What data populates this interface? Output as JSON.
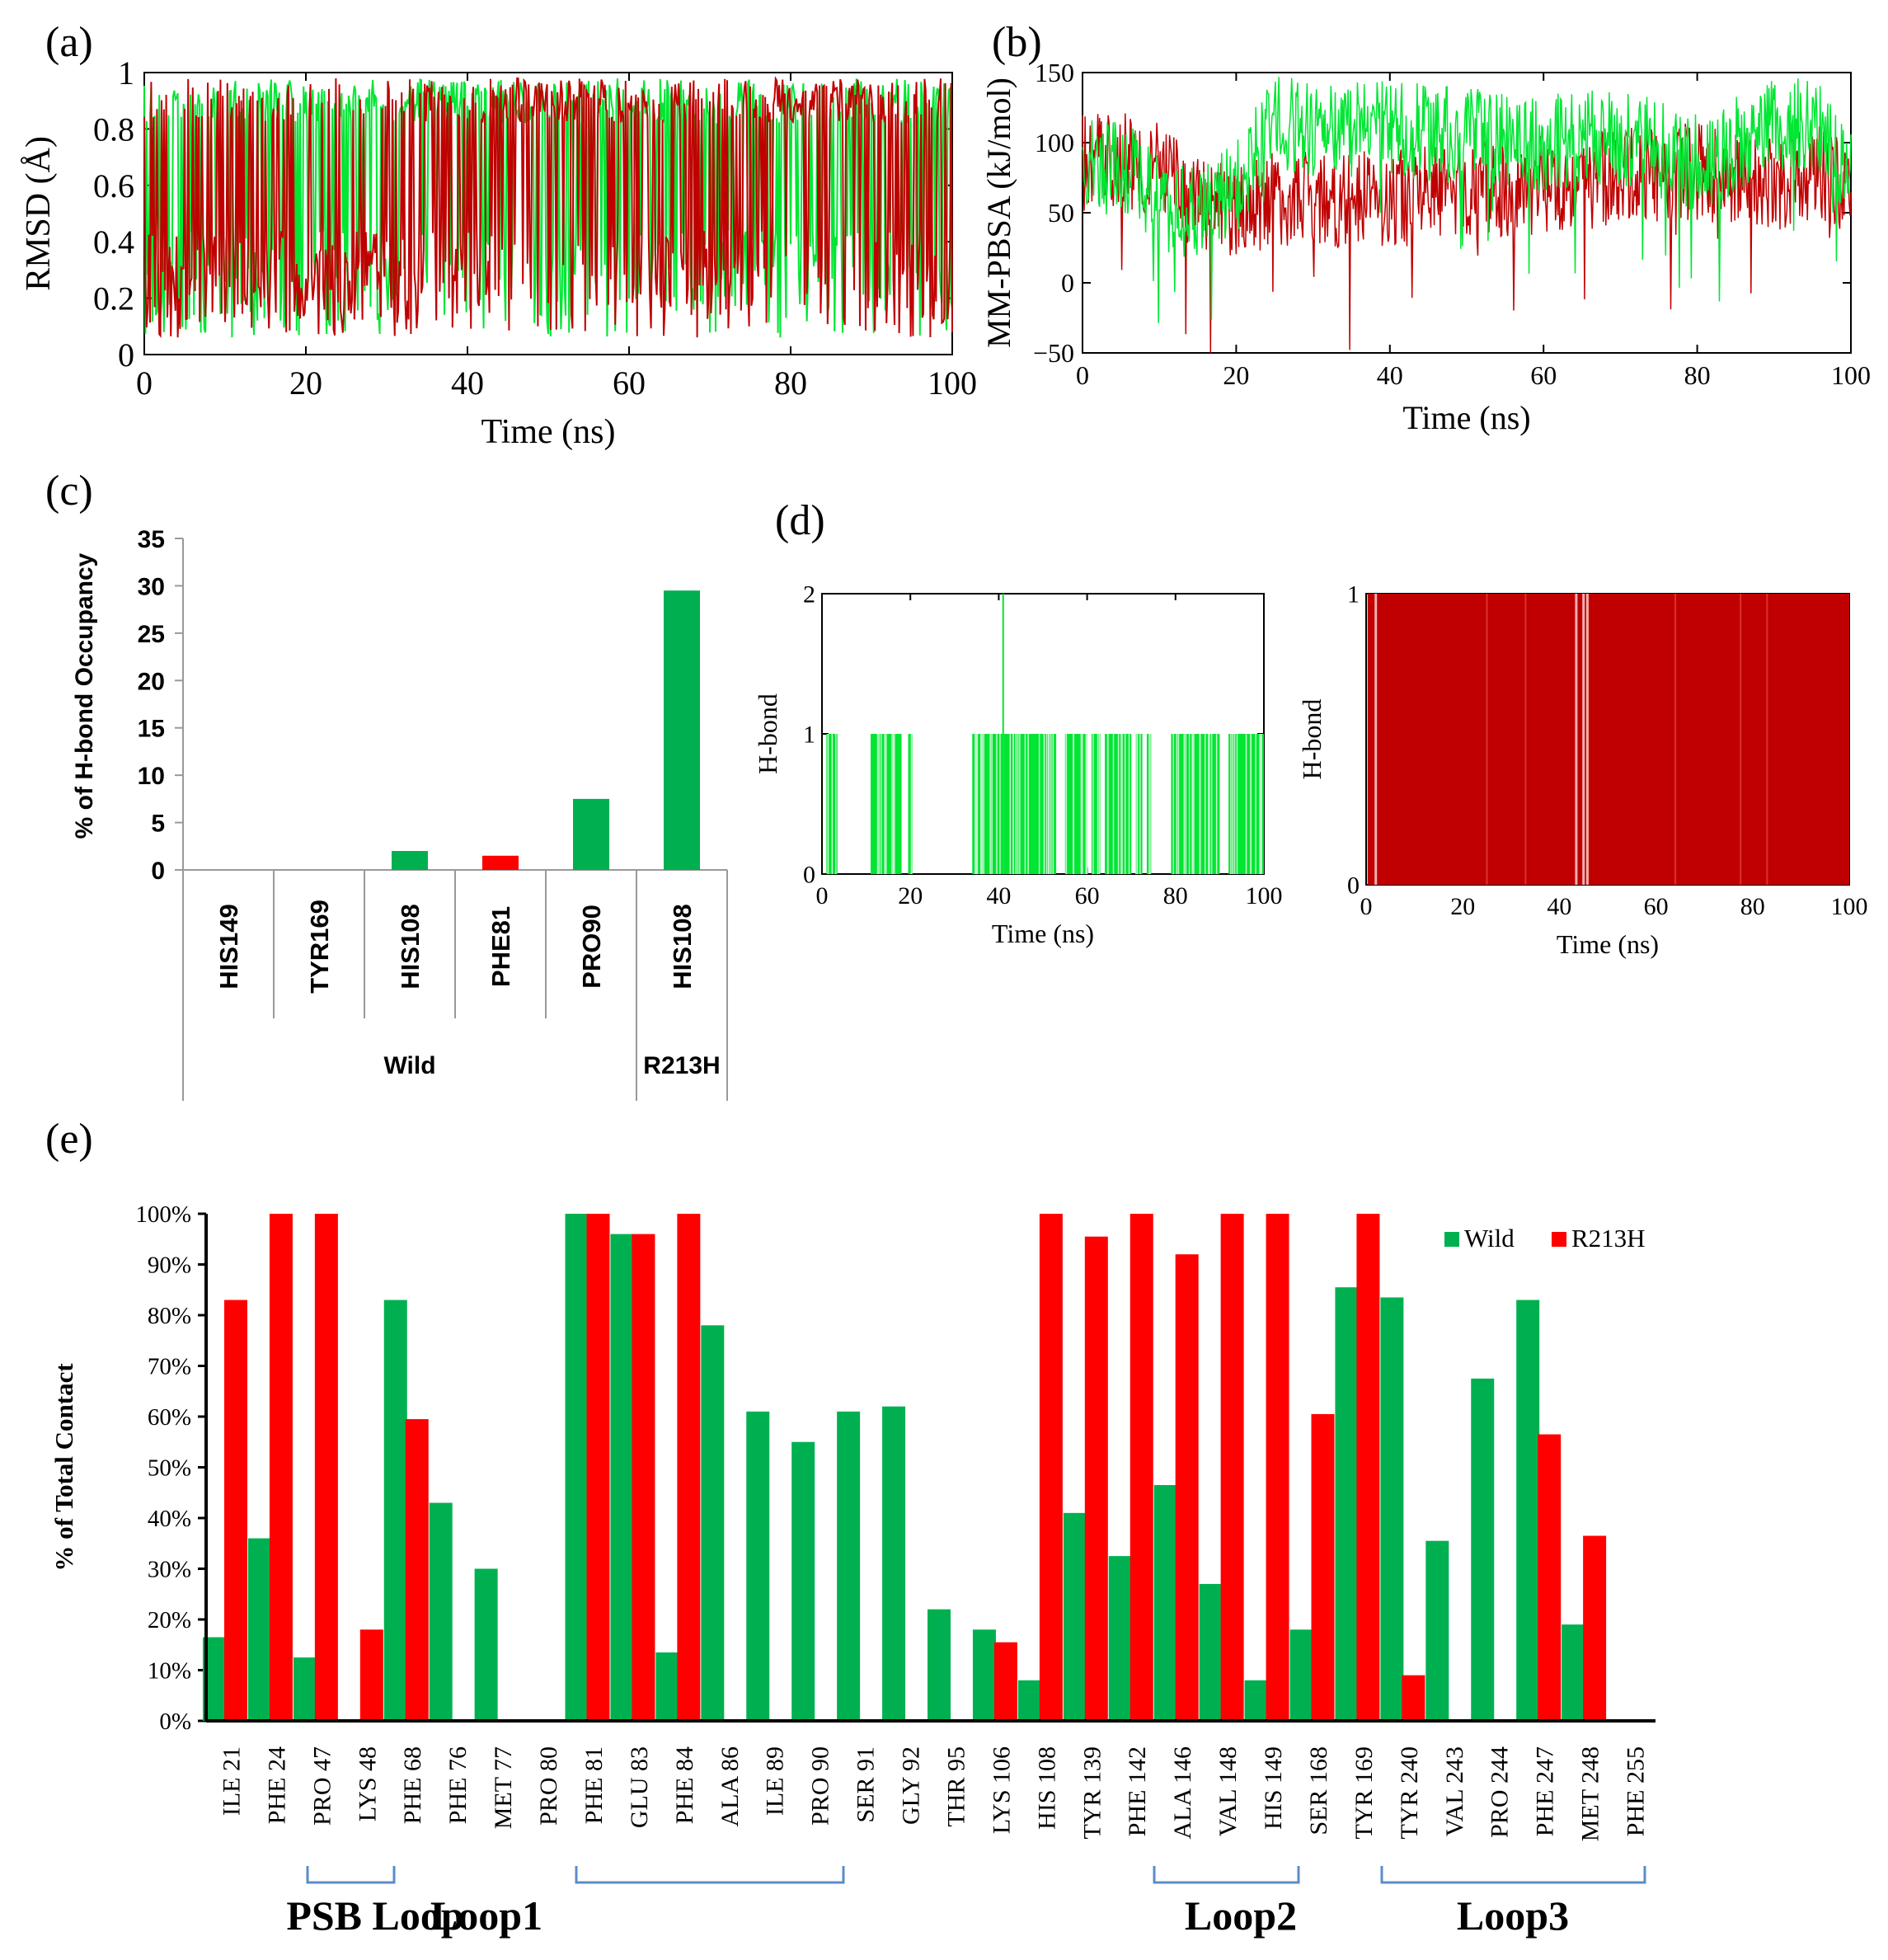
{
  "panels": [
    {
      "label": "(a)",
      "chart_data": {
        "type": "line",
        "title": "",
        "xlabel": "Time (ns)",
        "ylabel": "RMSD (Å)",
        "xlim": [
          0,
          100
        ],
        "ylim": [
          0,
          1
        ],
        "xticks": [
          0,
          20,
          40,
          60,
          80,
          100
        ],
        "yticks": [
          0,
          0.2,
          0.4,
          0.6,
          0.8,
          1
        ],
        "ytick_labels": [
          "0",
          "0.2",
          "0.4",
          "0.6",
          "0.8",
          "1"
        ],
        "series": [
          {
            "name": "Wild",
            "color": "#00e633",
            "x": [
              0,
              10,
              20,
              30,
              40,
              50,
              60,
              70,
              80,
              90,
              100
            ],
            "y": [
              0.5,
              0.55,
              0.6,
              0.55,
              0.85,
              0.5,
              0.6,
              0.55,
              0.5,
              0.55,
              0.5
            ]
          },
          {
            "name": "R213H",
            "color": "#c00000",
            "x": [
              0,
              10,
              20,
              30,
              40,
              50,
              60,
              70,
              80,
              90,
              100
            ],
            "y": [
              0.45,
              0.35,
              0.25,
              0.25,
              0.5,
              0.85,
              0.75,
              0.3,
              0.9,
              0.75,
              0.6
            ]
          }
        ]
      }
    },
    {
      "label": "(b)",
      "chart_data": {
        "type": "line",
        "title": "",
        "xlabel": "Time (ns)",
        "ylabel": "MM-PBSA (kJ/mol)",
        "xlim": [
          0,
          100
        ],
        "ylim": [
          -50,
          150
        ],
        "xticks": [
          0,
          20,
          40,
          60,
          80,
          100
        ],
        "yticks": [
          -50,
          0,
          50,
          100,
          150
        ],
        "ytick_labels": [
          "−50",
          "0",
          "50",
          "100",
          "150"
        ],
        "series": [
          {
            "name": "Wild",
            "color": "#00e633",
            "x": [
              0,
              5,
              10,
              15,
              20,
              25,
              30,
              40,
              50,
              60,
              70,
              80,
              90,
              95,
              100
            ],
            "y": [
              80,
              85,
              60,
              45,
              70,
              115,
              110,
              110,
              105,
              100,
              105,
              85,
              110,
              115,
              75
            ]
          },
          {
            "name": "R213H",
            "color": "#c00000",
            "x": [
              0,
              5,
              10,
              15,
              20,
              25,
              30,
              40,
              50,
              60,
              70,
              80,
              90,
              95,
              100
            ],
            "y": [
              85,
              90,
              80,
              55,
              50,
              60,
              60,
              60,
              65,
              70,
              75,
              80,
              70,
              80,
              65
            ]
          }
        ]
      }
    },
    {
      "label": "(c)",
      "chart_data": {
        "type": "bar",
        "title": "",
        "xlabel": "",
        "ylabel": "% of H-bond Occupancy",
        "ylim": [
          0,
          35
        ],
        "yticks": [
          0,
          5,
          10,
          15,
          20,
          25,
          30,
          35
        ],
        "categories": [
          "HIS149",
          "TYR169",
          "HIS108",
          "PHE81",
          "PRO90",
          "HIS108"
        ],
        "values": [
          0,
          0,
          2,
          1.5,
          7.5,
          29.5
        ],
        "bar_colors": [
          "#00b050",
          "#00b050",
          "#00b050",
          "#ff0000",
          "#00b050",
          "#00b050"
        ],
        "groups": [
          {
            "name": "Wild",
            "count": 5
          },
          {
            "name": "R213H",
            "count": 1
          }
        ]
      }
    },
    {
      "label": "(d)",
      "chart_data": [
        {
          "type": "line",
          "title": "",
          "xlabel": "Time (ns)",
          "ylabel": "H-bond",
          "xlim": [
            0,
            100
          ],
          "ylim": [
            0,
            2
          ],
          "xticks": [
            0,
            20,
            40,
            60,
            80,
            100
          ],
          "yticks": [
            0,
            1,
            2
          ],
          "series": [
            {
              "name": "Wild",
              "color": "#00e633",
              "x": [
                2,
                3,
                12,
                14,
                16,
                35,
                40,
                41,
                45,
                50,
                55,
                58,
                62,
                66,
                80,
                85,
                90,
                95,
                98
              ],
              "y": [
                1,
                1,
                1,
                1,
                1,
                1,
                1,
                2,
                1,
                1,
                1,
                1,
                1,
                1,
                1,
                1,
                1,
                1,
                1
              ]
            }
          ]
        },
        {
          "type": "line",
          "title": "",
          "xlabel": "Time (ns)",
          "ylabel": "H-bond",
          "xlim": [
            0,
            100
          ],
          "ylim": [
            0,
            1
          ],
          "xticks": [
            0,
            20,
            40,
            60,
            80,
            100
          ],
          "yticks": [
            0,
            1
          ],
          "series": [
            {
              "name": "R213H",
              "color": "#c00000",
              "x": [
                0,
                100
              ],
              "y": [
                1,
                1
              ]
            }
          ]
        }
      ]
    },
    {
      "label": "(e)",
      "chart_data": {
        "type": "bar",
        "title": "",
        "xlabel": "",
        "ylabel": "% of Total Contact",
        "ylim": [
          0,
          100
        ],
        "yticks": [
          0,
          10,
          20,
          30,
          40,
          50,
          60,
          70,
          80,
          90,
          100
        ],
        "ytick_labels": [
          "0%",
          "10%",
          "20%",
          "30%",
          "40%",
          "50%",
          "60%",
          "70%",
          "80%",
          "90%",
          "100%"
        ],
        "categories": [
          "ILE 21",
          "PHE 24",
          "PRO 47",
          "LYS 48",
          "PHE 68",
          "PHE 76",
          "MET 77",
          "PRO 80",
          "PHE 81",
          "GLU 83",
          "PHE 84",
          "ALA 86",
          "ILE 89",
          "PRO 90",
          "SER 91",
          "GLY 92",
          "THR 95",
          "LYS 106",
          "HIS 108",
          "TYR 139",
          "PHE 142",
          "ALA 146",
          "VAL 148",
          "HIS 149",
          "SER 168",
          "TYR 169",
          "TYR 240",
          "VAL 243",
          "PRO 244",
          "PHE 247",
          "MET 248",
          "PHE 255"
        ],
        "series": [
          {
            "name": "Wild",
            "color": "#00b050",
            "values": [
              16.5,
              36,
              12.5,
              0,
              83,
              43,
              30,
              0,
              100,
              96,
              13.5,
              78,
              61,
              55,
              61,
              62,
              22,
              18,
              8,
              41,
              32.5,
              46.5,
              27,
              8,
              18,
              85.5,
              83.5,
              35.5,
              67.5,
              83,
              19,
              0
            ]
          },
          {
            "name": "R213H",
            "color": "#ff0000",
            "values": [
              83,
              100,
              100,
              18,
              59.5,
              0,
              0,
              0,
              100,
              96,
              100,
              0,
              0,
              0,
              0,
              0,
              0,
              15.5,
              100,
              95.5,
              100,
              92,
              100,
              100,
              60.5,
              100,
              9,
              0,
              0,
              56.5,
              36.5,
              0
            ]
          }
        ],
        "legend": [
          "Wild",
          "R213H"
        ],
        "legend_position": "top-right",
        "brackets": [
          "PSB Loop",
          "Loop1",
          "Loop2",
          "Loop3"
        ]
      }
    }
  ]
}
